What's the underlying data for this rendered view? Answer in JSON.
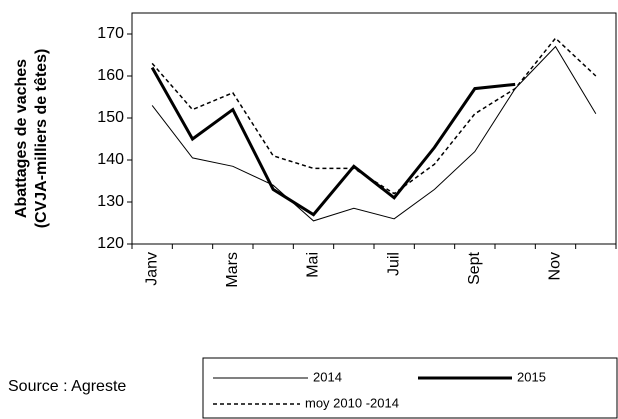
{
  "chart_data": {
    "type": "line",
    "y_label_lines": [
      "Abattages de vaches",
      "(CVJA-milliers de  têtes)"
    ],
    "source": "Source : Agreste",
    "categories": [
      "Janv",
      null,
      "Mars",
      null,
      "Mai",
      null,
      "Juil",
      null,
      "Sept",
      null,
      "Nov",
      null
    ],
    "series": [
      {
        "name": "2014",
        "color": "#000000",
        "width": 1,
        "dash": "none",
        "values": [
          153,
          140.5,
          138.5,
          134,
          125.5,
          128.5,
          126,
          133,
          142,
          157,
          167,
          151
        ]
      },
      {
        "name": "2015",
        "color": "#000000",
        "width": 3,
        "dash": "none",
        "values": [
          162,
          145,
          152,
          133,
          127,
          138.5,
          131,
          143,
          157,
          158,
          null,
          null
        ]
      },
      {
        "name": "moy 2010 -2014",
        "color": "#000000",
        "width": 1.5,
        "dash": "4 3",
        "values": [
          163,
          152,
          156,
          141,
          138,
          138,
          132,
          139,
          151,
          157,
          169,
          160
        ]
      }
    ],
    "ylim": [
      120,
      175
    ],
    "yticks": [
      120,
      130,
      140,
      150,
      160,
      170
    ],
    "grid": false
  }
}
